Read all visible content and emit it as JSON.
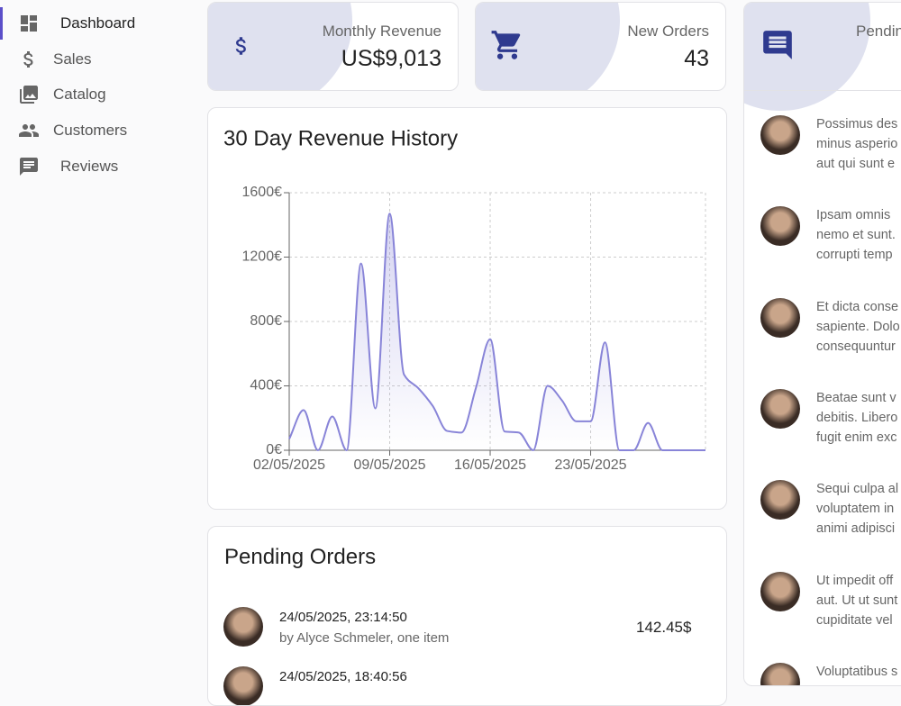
{
  "sidebar": {
    "items": [
      "Dashboard",
      "Sales",
      "Catalog",
      "Customers",
      "Reviews"
    ],
    "active": "Dashboard"
  },
  "stats": [
    {
      "label": "Monthly Revenue",
      "value": "US$9,013"
    },
    {
      "label": "New Orders",
      "value": "43"
    },
    {
      "label": "Pending Reviews"
    }
  ],
  "chart_data": {
    "type": "area",
    "title": "30 Day Revenue History",
    "x": [
      "02/05/2025",
      "03/05/2025",
      "04/05/2025",
      "05/05/2025",
      "06/05/2025",
      "07/05/2025",
      "08/05/2025",
      "09/05/2025",
      "10/05/2025",
      "11/05/2025",
      "12/05/2025",
      "13/05/2025",
      "14/05/2025",
      "15/05/2025",
      "16/05/2025",
      "17/05/2025",
      "18/05/2025",
      "19/05/2025",
      "20/05/2025",
      "21/05/2025",
      "22/05/2025",
      "23/05/2025",
      "24/05/2025",
      "25/05/2025",
      "26/05/2025",
      "27/05/2025",
      "28/05/2025",
      "29/05/2025",
      "30/05/2025",
      "31/05/2025"
    ],
    "values": [
      70,
      250,
      0,
      210,
      0,
      1160,
      260,
      1470,
      470,
      385,
      275,
      120,
      110,
      385,
      690,
      117,
      110,
      0,
      400,
      310,
      180,
      180,
      670,
      0,
      0,
      170,
      0,
      0,
      0,
      0
    ],
    "color": "#8884d8",
    "xticks": [
      "02/05/2025",
      "09/05/2025",
      "16/05/2025",
      "23/05/2025"
    ],
    "ylim": [
      0,
      1600
    ],
    "yticks": [
      {
        "value": 0,
        "label": "0€"
      },
      {
        "value": 400,
        "label": "400€"
      },
      {
        "value": 800,
        "label": "800€"
      },
      {
        "value": 1200,
        "label": "1200€"
      },
      {
        "value": 1600,
        "label": "1600€"
      }
    ],
    "grid": true
  },
  "pending_orders": {
    "title": "Pending Orders",
    "rows": [
      {
        "date": "24/05/2025, 23:14:50",
        "customer": "by Alyce Schmeler, one item",
        "total": "142.45$"
      },
      {
        "date": "24/05/2025, 18:40:56"
      }
    ]
  },
  "reviews": [
    [
      "Possimus des",
      "minus asperio",
      "aut qui sunt e"
    ],
    [
      "Ipsam omnis",
      "nemo et sunt.",
      "corrupti temp"
    ],
    [
      "Et dicta conse",
      "sapiente. Dolo",
      "consequuntur"
    ],
    [
      "Beatae sunt v",
      "debitis. Libero",
      "fugit enim exc"
    ],
    [
      "Sequi culpa al",
      "voluptatem in",
      "animi adipisci"
    ],
    [
      "Ut impedit off",
      "aut. Ut ut sunt",
      "cupiditate vel"
    ],
    [
      "Voluptatibus s"
    ]
  ]
}
